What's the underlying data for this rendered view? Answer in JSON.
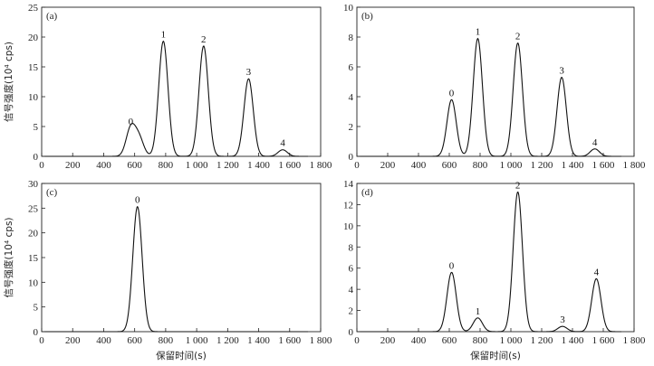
{
  "chart_data": [
    {
      "type": "line",
      "panel_label": "(a)",
      "xlabel": "",
      "ylabel": "信号强度(10⁴ cps)",
      "xlim": [
        0,
        1800
      ],
      "ylim": [
        0,
        25
      ],
      "xticks": [
        0,
        200,
        400,
        600,
        800,
        1000,
        1200,
        1400,
        1600,
        1800
      ],
      "xtick_labels": [
        "0",
        "200",
        "400",
        "600",
        "800",
        "1 000",
        "1 200",
        "1 400",
        "1 600",
        "1 800"
      ],
      "yticks": [
        0,
        5,
        10,
        15,
        20,
        25
      ],
      "ytick_labels": [
        "0",
        "5",
        "10",
        "15",
        "20",
        "25"
      ],
      "peaks": [
        {
          "label": "0",
          "x": 575,
          "y": 4.7
        },
        {
          "label": "",
          "x": 628,
          "y": 3.0
        },
        {
          "label": "1",
          "x": 785,
          "y": 19.3
        },
        {
          "label": "2",
          "x": 1045,
          "y": 18.5
        },
        {
          "label": "3",
          "x": 1335,
          "y": 13.0
        },
        {
          "label": "4",
          "x": 1555,
          "y": 1.1
        }
      ],
      "peak_label_values": [
        "0",
        "1",
        "2",
        "3",
        "4"
      ]
    },
    {
      "type": "line",
      "panel_label": "(b)",
      "xlabel": "",
      "ylabel": "",
      "xlim": [
        0,
        1800
      ],
      "ylim": [
        0,
        10
      ],
      "xticks": [
        0,
        200,
        400,
        600,
        800,
        1000,
        1200,
        1400,
        1600,
        1800
      ],
      "xtick_labels": [
        "0",
        "200",
        "400",
        "600",
        "800",
        "1 000",
        "1 200",
        "1 400",
        "1 600",
        "1 800"
      ],
      "yticks": [
        0,
        2,
        4,
        6,
        8,
        10
      ],
      "ytick_labels": [
        "0",
        "2",
        "4",
        "6",
        "8",
        "10"
      ],
      "peaks": [
        {
          "label": "0",
          "x": 615,
          "y": 3.8
        },
        {
          "label": "1",
          "x": 785,
          "y": 7.9
        },
        {
          "label": "2",
          "x": 1045,
          "y": 7.6
        },
        {
          "label": "3",
          "x": 1330,
          "y": 5.3
        },
        {
          "label": "4",
          "x": 1545,
          "y": 0.5
        }
      ]
    },
    {
      "type": "line",
      "panel_label": "(c)",
      "xlabel": "保留时间(s)",
      "ylabel": "信号强度(10⁴ cps)",
      "xlim": [
        0,
        1800
      ],
      "ylim": [
        0,
        30
      ],
      "xticks": [
        0,
        200,
        400,
        600,
        800,
        1000,
        1200,
        1400,
        1600,
        1800
      ],
      "xtick_labels": [
        "0",
        "200",
        "400",
        "600",
        "800",
        "1 000",
        "1 200",
        "1 400",
        "1 600",
        "1 800"
      ],
      "yticks": [
        0,
        5,
        10,
        15,
        20,
        25,
        30
      ],
      "ytick_labels": [
        "0",
        "5",
        "10",
        "15",
        "20",
        "25",
        "30"
      ],
      "peaks": [
        {
          "label": "0",
          "x": 618,
          "y": 25.3
        }
      ]
    },
    {
      "type": "line",
      "panel_label": "(d)",
      "xlabel": "保留时间(s)",
      "ylabel": "",
      "xlim": [
        0,
        1800
      ],
      "ylim": [
        0,
        14
      ],
      "xticks": [
        0,
        200,
        400,
        600,
        800,
        1000,
        1200,
        1400,
        1600,
        1800
      ],
      "xtick_labels": [
        "0",
        "200",
        "400",
        "600",
        "800",
        "1 000",
        "1 200",
        "1 400",
        "1 600",
        "1 800"
      ],
      "yticks": [
        0,
        2,
        4,
        6,
        8,
        10,
        12,
        14
      ],
      "ytick_labels": [
        "0",
        "2",
        "4",
        "6",
        "8",
        "10",
        "12",
        "14"
      ],
      "peaks": [
        {
          "label": "0",
          "x": 615,
          "y": 5.6
        },
        {
          "label": "1",
          "x": 785,
          "y": 1.3
        },
        {
          "label": "2",
          "x": 1045,
          "y": 13.2
        },
        {
          "label": "3",
          "x": 1335,
          "y": 0.5
        },
        {
          "label": "4",
          "x": 1555,
          "y": 5.0
        }
      ]
    }
  ]
}
